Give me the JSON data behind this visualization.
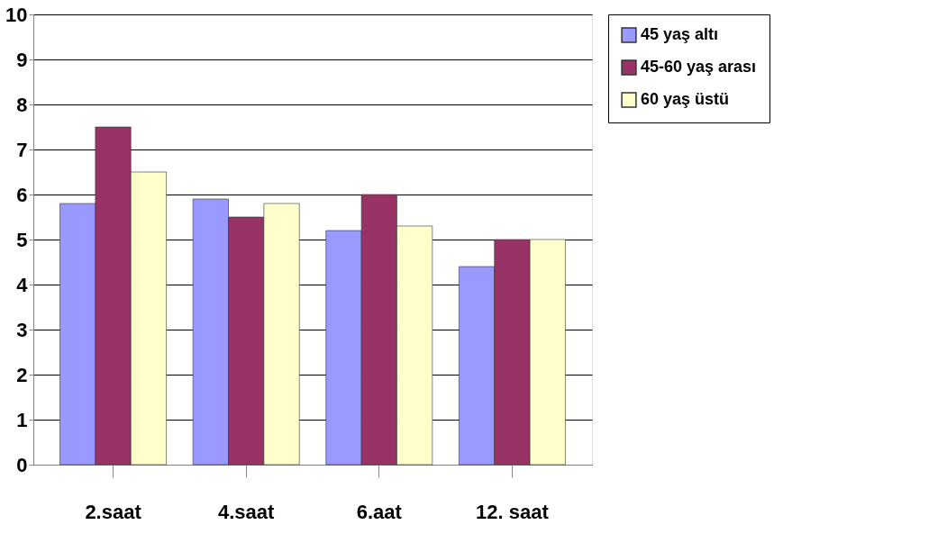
{
  "chart_data": {
    "type": "bar",
    "categories": [
      "2.saat",
      "4.saat",
      "6.aat",
      "12. saat"
    ],
    "series": [
      {
        "name": "45 yaş altı",
        "color": "#9999ff",
        "values": [
          5.8,
          5.9,
          5.2,
          4.4
        ]
      },
      {
        "name": "45-60 yaş arası",
        "color": "#993366",
        "values": [
          7.5,
          5.5,
          6.0,
          5.0
        ]
      },
      {
        "name": "60 yaş üstü",
        "color": "#ffffcc",
        "values": [
          6.5,
          5.8,
          5.3,
          5.0
        ]
      }
    ],
    "ylim": [
      0,
      10
    ],
    "yticks": [
      0,
      1,
      2,
      3,
      4,
      5,
      6,
      7,
      8,
      9,
      10
    ],
    "grid": "y",
    "legend": "right"
  }
}
